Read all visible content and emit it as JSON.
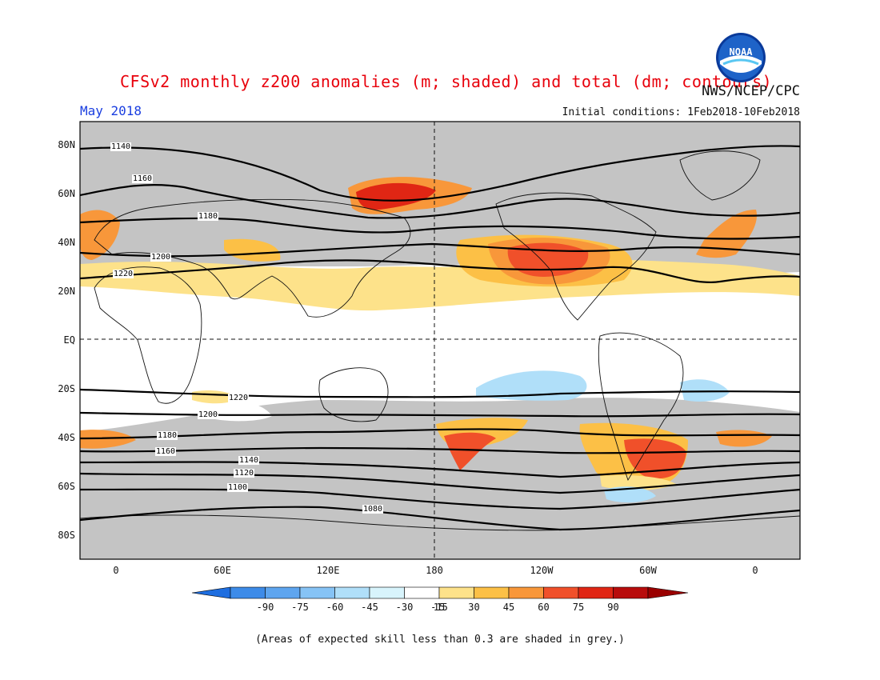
{
  "header": {
    "title": "CFSv2 monthly z200 anomalies (m; shaded) and total (dm; contours)",
    "agency": "NWS/NCEP/CPC",
    "month": "May 2018",
    "initial_conditions": "Initial conditions: 1Feb2018-10Feb2018"
  },
  "logo": {
    "text": "NOAA",
    "icon": "noaa-logo"
  },
  "axes": {
    "lat_labels": [
      "80N",
      "60N",
      "40N",
      "20N",
      "EQ",
      "20S",
      "40S",
      "60S",
      "80S"
    ],
    "lon_labels": [
      "0",
      "60E",
      "120E",
      "180",
      "120W",
      "60W",
      "0"
    ]
  },
  "contours": {
    "labels": [
      "1140",
      "1160",
      "1180",
      "1200",
      "1220",
      "1220",
      "1200",
      "1180",
      "1160",
      "1140",
      "1120",
      "1100",
      "1080"
    ]
  },
  "colorbar": {
    "ticks": [
      "-90",
      "-75",
      "-60",
      "-45",
      "-30",
      "-15",
      "15",
      "30",
      "45",
      "60",
      "75",
      "90"
    ],
    "colors": [
      "#1e6ee0",
      "#3d8be8",
      "#5ea5ef",
      "#86c3f5",
      "#b0dff9",
      "#d8f4fc",
      "#ffffff",
      "#fde28a",
      "#fcc046",
      "#f8973a",
      "#f0502a",
      "#e02614",
      "#b80c0c",
      "#9a0000"
    ]
  },
  "footnote": "(Areas of expected skill less than 0.3 are shaded in grey.)"
}
